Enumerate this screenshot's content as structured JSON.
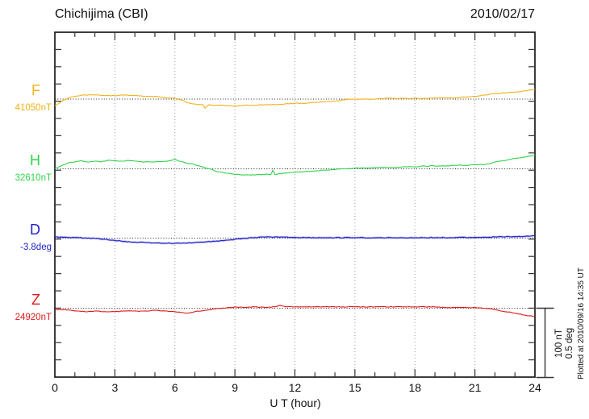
{
  "header": {
    "title": "Chichijima (CBI)",
    "date": "2010/02/17"
  },
  "footer": {
    "note": "Plotted at 2010/09/16 14:35 UT"
  },
  "chart_data": {
    "type": "line",
    "station": "Chichijima",
    "station_code": "CBI",
    "title": "Chichijima (CBI)",
    "date": "2010/02/17",
    "xlabel": "U T (hour)",
    "x_range": [
      0,
      24
    ],
    "x_ticks": [
      0,
      3,
      6,
      9,
      12,
      15,
      18,
      21,
      24
    ],
    "x_gridlines": [
      3,
      6,
      9,
      12,
      15,
      18,
      21
    ],
    "grid": "dotted",
    "scale_bar": {
      "nt_label": "100 nT",
      "deg_label": "0.5 deg",
      "nt": 100,
      "deg": 0.5
    },
    "series": [
      {
        "name": "F",
        "unit": "nT",
        "base": 41050,
        "base_label": "41050nT",
        "color": "#F2B219",
        "points": [
          [
            0,
            41041
          ],
          [
            0.3,
            41046
          ],
          [
            0.7,
            41052
          ],
          [
            1,
            41054
          ],
          [
            1.5,
            41056
          ],
          [
            2,
            41056
          ],
          [
            2.5,
            41055
          ],
          [
            3,
            41055
          ],
          [
            3.5,
            41056
          ],
          [
            4,
            41055
          ],
          [
            4.5,
            41054
          ],
          [
            5,
            41054
          ],
          [
            5.5,
            41052
          ],
          [
            6,
            41051
          ],
          [
            6.3,
            41049
          ],
          [
            6.6,
            41045
          ],
          [
            7,
            41043
          ],
          [
            7.4,
            41042
          ],
          [
            7.5,
            41037
          ],
          [
            7.7,
            41042
          ],
          [
            8,
            41041
          ],
          [
            8.5,
            41041
          ],
          [
            9,
            41040
          ],
          [
            9.5,
            41041
          ],
          [
            10,
            41041
          ],
          [
            10.5,
            41042
          ],
          [
            11,
            41042
          ],
          [
            11.5,
            41043
          ],
          [
            12,
            41044
          ],
          [
            12.5,
            41044
          ],
          [
            13,
            41045
          ],
          [
            13.5,
            41046
          ],
          [
            14,
            41047
          ],
          [
            14.5,
            41049
          ],
          [
            15,
            41050
          ],
          [
            15.5,
            41050
          ],
          [
            16,
            41050
          ],
          [
            16.5,
            41051
          ],
          [
            17,
            41051
          ],
          [
            17.5,
            41051
          ],
          [
            18,
            41051
          ],
          [
            18.5,
            41051
          ],
          [
            19,
            41052
          ],
          [
            19.5,
            41052
          ],
          [
            20,
            41052
          ],
          [
            20.5,
            41053
          ],
          [
            21,
            41054
          ],
          [
            21.5,
            41056
          ],
          [
            22,
            41058
          ],
          [
            22.5,
            41059
          ],
          [
            23,
            41060
          ],
          [
            23.5,
            41062
          ],
          [
            24,
            41064
          ]
        ]
      },
      {
        "name": "H",
        "unit": "nT",
        "base": 32610,
        "base_label": "32610nT",
        "color": "#2FD24C",
        "points": [
          [
            0,
            32610
          ],
          [
            0.3,
            32614
          ],
          [
            0.7,
            32619
          ],
          [
            1,
            32620
          ],
          [
            1.3,
            32622
          ],
          [
            1.6,
            32620
          ],
          [
            2,
            32621
          ],
          [
            2.3,
            32620
          ],
          [
            2.6,
            32622
          ],
          [
            3,
            32622
          ],
          [
            3.4,
            32621
          ],
          [
            3.7,
            32622
          ],
          [
            4,
            32621
          ],
          [
            4.5,
            32620
          ],
          [
            5,
            32620
          ],
          [
            5.5,
            32621
          ],
          [
            5.8,
            32622
          ],
          [
            6,
            32624
          ],
          [
            6.2,
            32621
          ],
          [
            6.5,
            32619
          ],
          [
            7,
            32616
          ],
          [
            7.5,
            32612
          ],
          [
            8,
            32607
          ],
          [
            8.5,
            32604
          ],
          [
            9,
            32602
          ],
          [
            9.5,
            32601
          ],
          [
            10,
            32601
          ],
          [
            10.4,
            32602
          ],
          [
            10.8,
            32602
          ],
          [
            10.9,
            32608
          ],
          [
            11,
            32602
          ],
          [
            11.5,
            32604
          ],
          [
            12,
            32605
          ],
          [
            12.5,
            32606
          ],
          [
            13,
            32607
          ],
          [
            13.5,
            32608
          ],
          [
            14,
            32609
          ],
          [
            14.5,
            32610
          ],
          [
            15,
            32611
          ],
          [
            15.5,
            32611
          ],
          [
            16,
            32612
          ],
          [
            16.5,
            32612
          ],
          [
            17,
            32612
          ],
          [
            17.5,
            32613
          ],
          [
            18,
            32613
          ],
          [
            18.5,
            32614
          ],
          [
            19,
            32614
          ],
          [
            19.5,
            32614
          ],
          [
            20,
            32615
          ],
          [
            20.5,
            32615
          ],
          [
            21,
            32616
          ],
          [
            21.4,
            32616
          ],
          [
            21.7,
            32617
          ],
          [
            22,
            32620
          ],
          [
            22.5,
            32622
          ],
          [
            23,
            32625
          ],
          [
            23.5,
            32627
          ],
          [
            24,
            32630
          ]
        ]
      },
      {
        "name": "D",
        "unit": "deg",
        "base": -3.8,
        "base_label": "-3.8deg",
        "color": "#2323CC",
        "points": [
          [
            0,
            -3.791
          ],
          [
            0.5,
            -3.793
          ],
          [
            1,
            -3.796
          ],
          [
            1.5,
            -3.799
          ],
          [
            2,
            -3.803
          ],
          [
            2.5,
            -3.809
          ],
          [
            3,
            -3.817
          ],
          [
            3.5,
            -3.824
          ],
          [
            4,
            -3.829
          ],
          [
            4.5,
            -3.832
          ],
          [
            5,
            -3.835
          ],
          [
            5.5,
            -3.837
          ],
          [
            6,
            -3.838
          ],
          [
            6.5,
            -3.836
          ],
          [
            7,
            -3.832
          ],
          [
            7.5,
            -3.828
          ],
          [
            8,
            -3.823
          ],
          [
            8.5,
            -3.816
          ],
          [
            9,
            -3.809
          ],
          [
            9.5,
            -3.802
          ],
          [
            10,
            -3.796
          ],
          [
            10.5,
            -3.793
          ],
          [
            11,
            -3.792
          ],
          [
            11.5,
            -3.793
          ],
          [
            12,
            -3.795
          ],
          [
            12.5,
            -3.796
          ],
          [
            13,
            -3.797
          ],
          [
            14,
            -3.797
          ],
          [
            15,
            -3.797
          ],
          [
            16,
            -3.798
          ],
          [
            17,
            -3.797
          ],
          [
            18,
            -3.797
          ],
          [
            19,
            -3.797
          ],
          [
            20,
            -3.796
          ],
          [
            21,
            -3.795
          ],
          [
            22,
            -3.792
          ],
          [
            23,
            -3.789
          ],
          [
            23.5,
            -3.787
          ],
          [
            24,
            -3.784
          ]
        ]
      },
      {
        "name": "Z",
        "unit": "nT",
        "base": 24920,
        "base_label": "24920nT",
        "color": "#E01818",
        "points": [
          [
            0,
            24918
          ],
          [
            0.5,
            24918
          ],
          [
            1,
            24916
          ],
          [
            1.5,
            24915
          ],
          [
            2,
            24916
          ],
          [
            2.5,
            24915
          ],
          [
            3,
            24915
          ],
          [
            3.5,
            24916
          ],
          [
            4,
            24916
          ],
          [
            4.5,
            24916
          ],
          [
            5,
            24917
          ],
          [
            5.5,
            24916
          ],
          [
            6,
            24915
          ],
          [
            6.3,
            24914
          ],
          [
            6.6,
            24913
          ],
          [
            7,
            24915
          ],
          [
            7.5,
            24917
          ],
          [
            8,
            24919
          ],
          [
            8.5,
            24920
          ],
          [
            9,
            24922
          ],
          [
            9.5,
            24921
          ],
          [
            10,
            24922
          ],
          [
            10.5,
            24921
          ],
          [
            11,
            24922
          ],
          [
            11.3,
            24924
          ],
          [
            11.6,
            24922
          ],
          [
            12,
            24922
          ],
          [
            12.5,
            24922
          ],
          [
            13,
            24922
          ],
          [
            13.5,
            24922
          ],
          [
            14,
            24922
          ],
          [
            15,
            24922
          ],
          [
            16,
            24922
          ],
          [
            17,
            24922
          ],
          [
            18,
            24922
          ],
          [
            19,
            24922
          ],
          [
            19.5,
            24921
          ],
          [
            20,
            24921
          ],
          [
            20.5,
            24921
          ],
          [
            21,
            24921
          ],
          [
            21.5,
            24920
          ],
          [
            22,
            24918
          ],
          [
            22.5,
            24915
          ],
          [
            23,
            24913
          ],
          [
            23.5,
            24910
          ],
          [
            24,
            24908
          ]
        ]
      }
    ]
  }
}
